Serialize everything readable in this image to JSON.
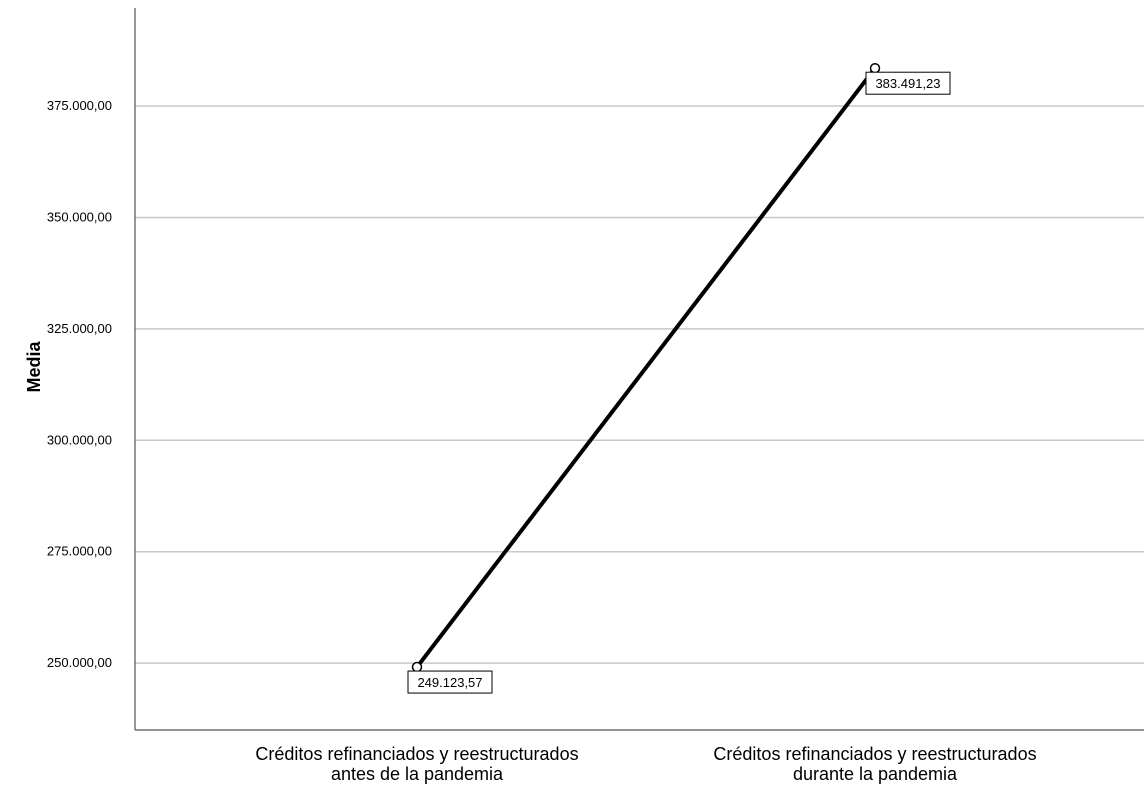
{
  "chart_data": {
    "type": "line",
    "title": "",
    "xlabel": "",
    "ylabel": "Media",
    "categories": [
      [
        "Créditos refinanciados y reestructurados",
        "antes de la pandemia"
      ],
      [
        "Créditos refinanciados y reestructurados",
        "durante la pandemia"
      ]
    ],
    "series": [
      {
        "values": [
          249123.57,
          383491.23
        ]
      }
    ],
    "data_labels": [
      "249.123,57",
      "383.491,23"
    ],
    "yticks": [
      250000,
      275000,
      300000,
      325000,
      350000,
      375000
    ],
    "ytick_labels": [
      "250.000,00",
      "275.000,00",
      "300.000,00",
      "325.000,00",
      "350.000,00",
      "375.000,00"
    ],
    "ylim": [
      235000,
      397000
    ],
    "grid": true,
    "legend": "none",
    "line_color": "#000000",
    "grid_color": "#c8c8c8"
  }
}
